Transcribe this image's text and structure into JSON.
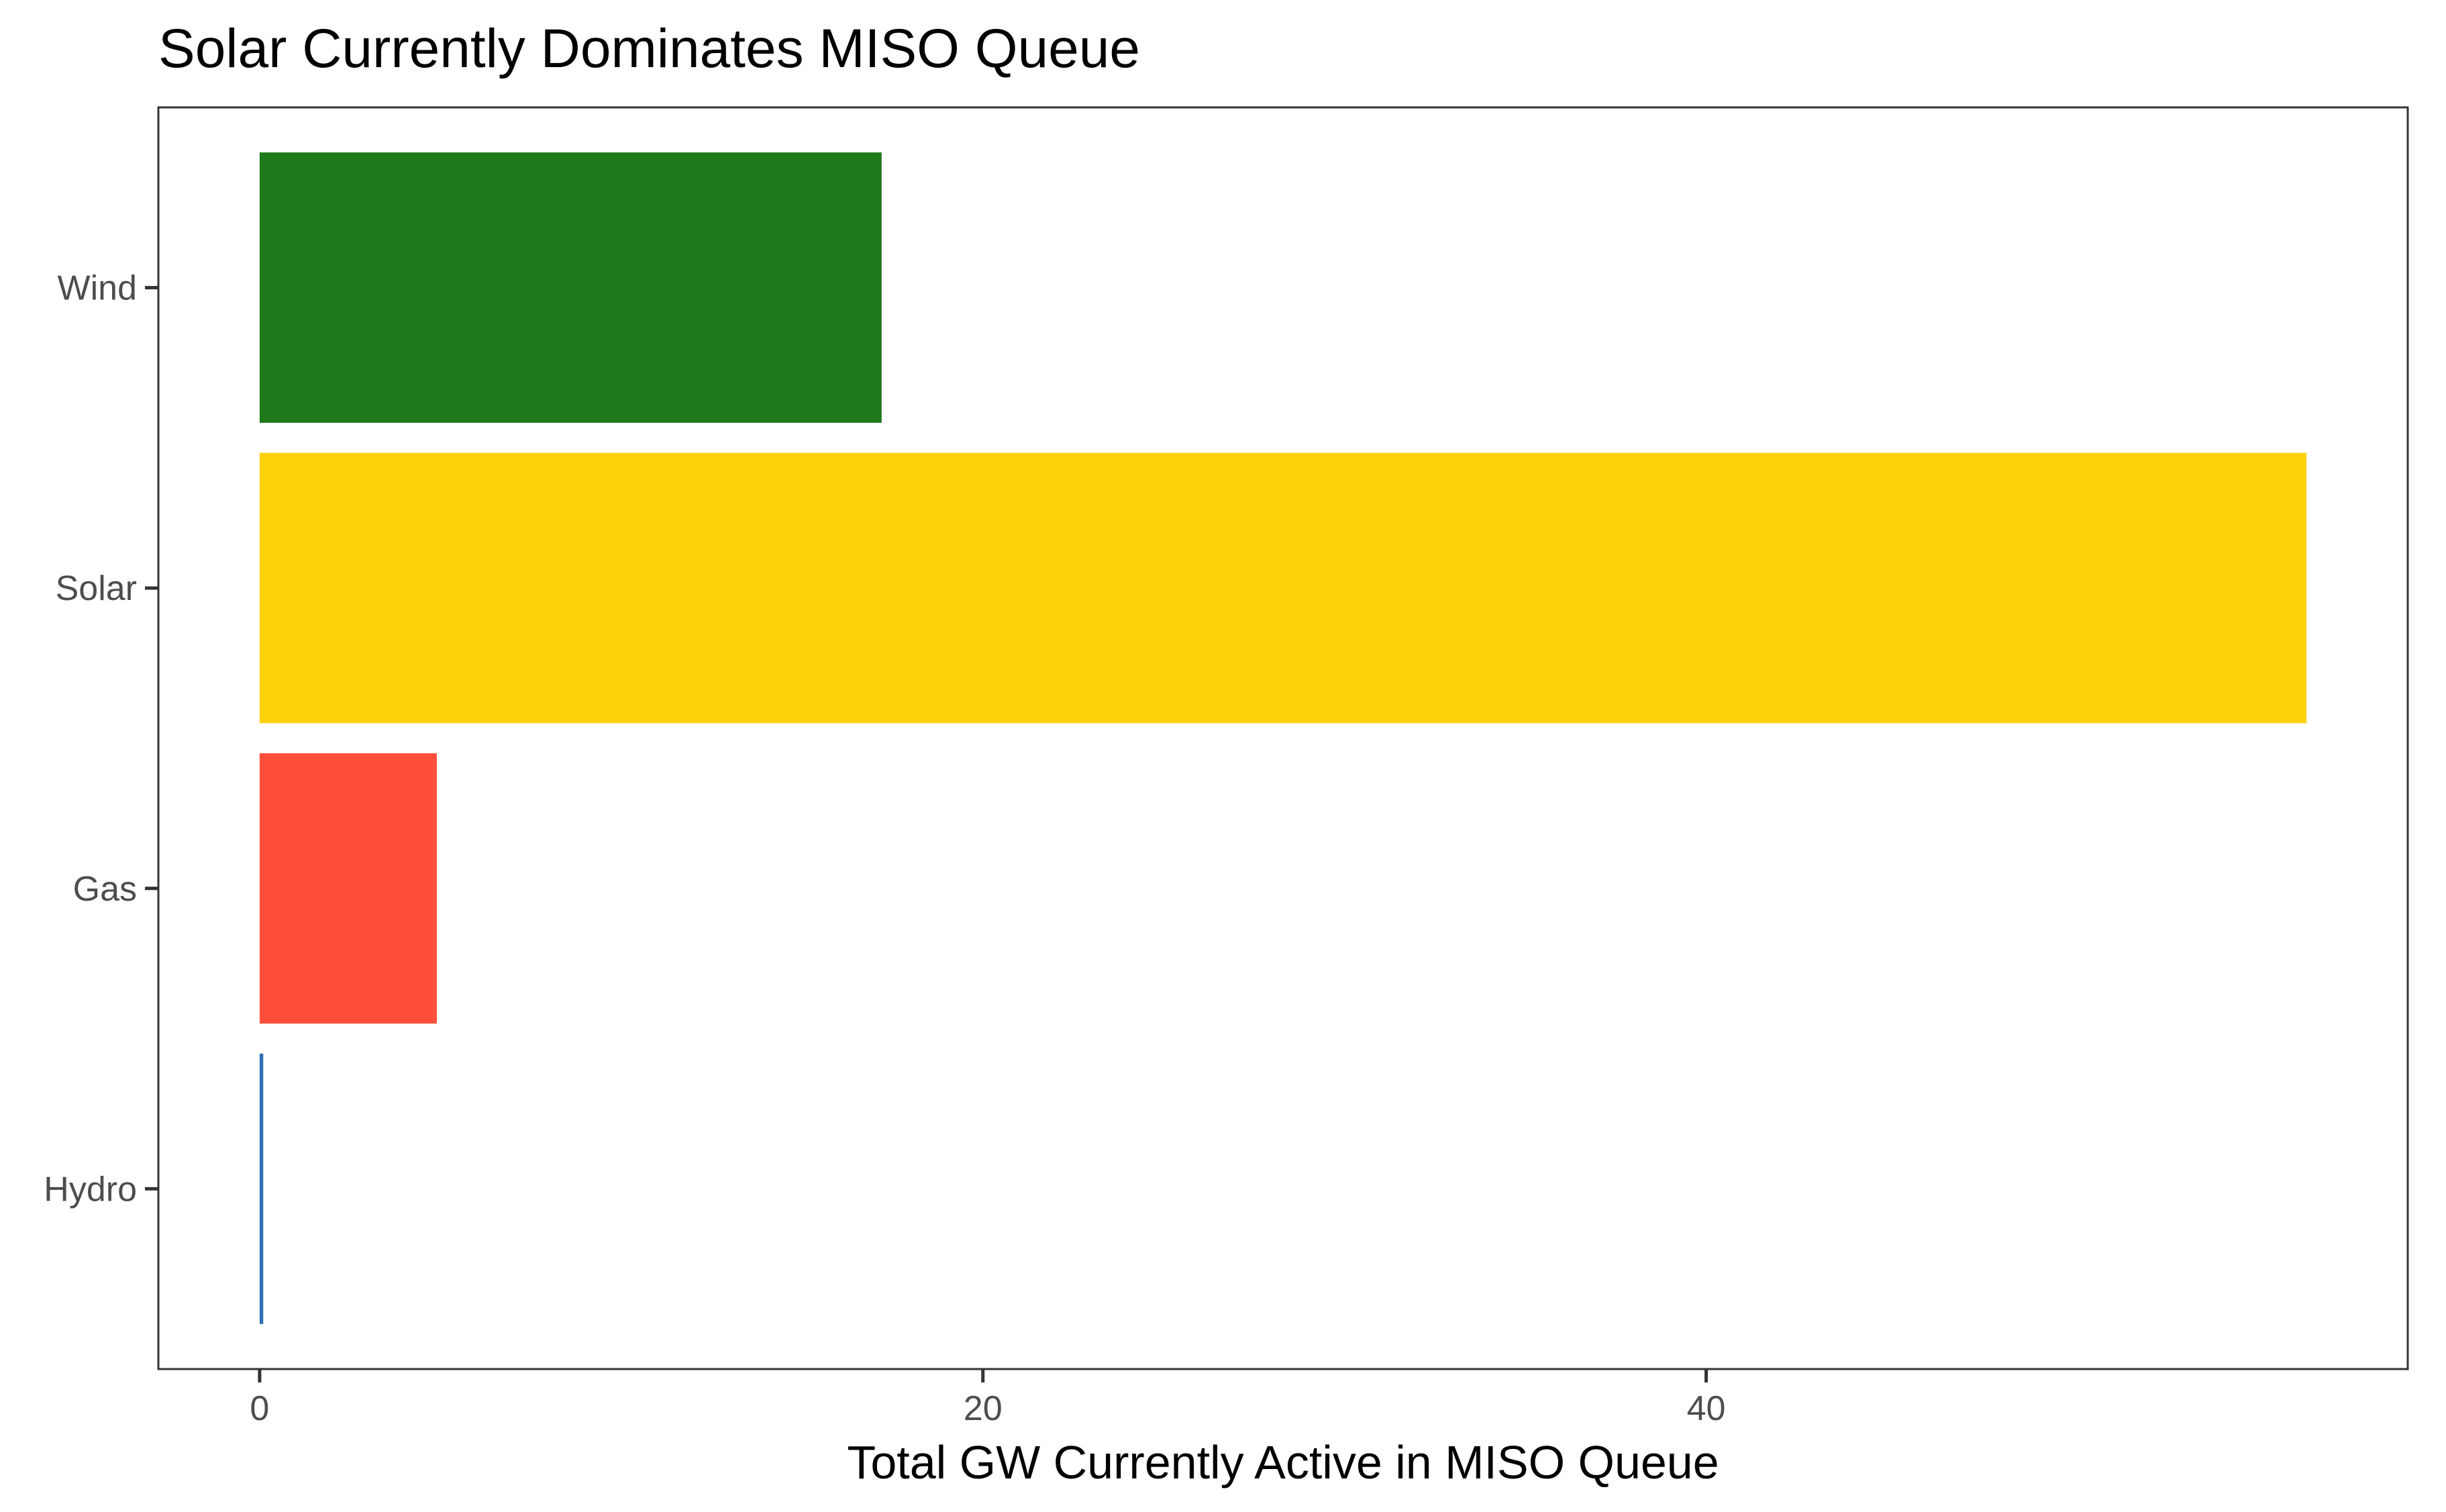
{
  "chart_data": {
    "type": "bar",
    "orientation": "horizontal",
    "title": "Solar Currently Dominates MISO Queue",
    "xlabel": "Total GW Currently Active in MISO Queue",
    "ylabel": "",
    "categories": [
      "Wind",
      "Solar",
      "Gas",
      "Hydro"
    ],
    "values": [
      17.2,
      56.6,
      4.9,
      0.1
    ],
    "colors": [
      "#1f7a1c",
      "#ffd10a",
      "#ff4f3b",
      "#2f6db5"
    ],
    "xlim": [
      -2.8,
      59.4
    ],
    "xticks": [
      0,
      20,
      40
    ],
    "xtick_labels": [
      "0",
      "20",
      "40"
    ],
    "grid": false,
    "legend": "none"
  }
}
